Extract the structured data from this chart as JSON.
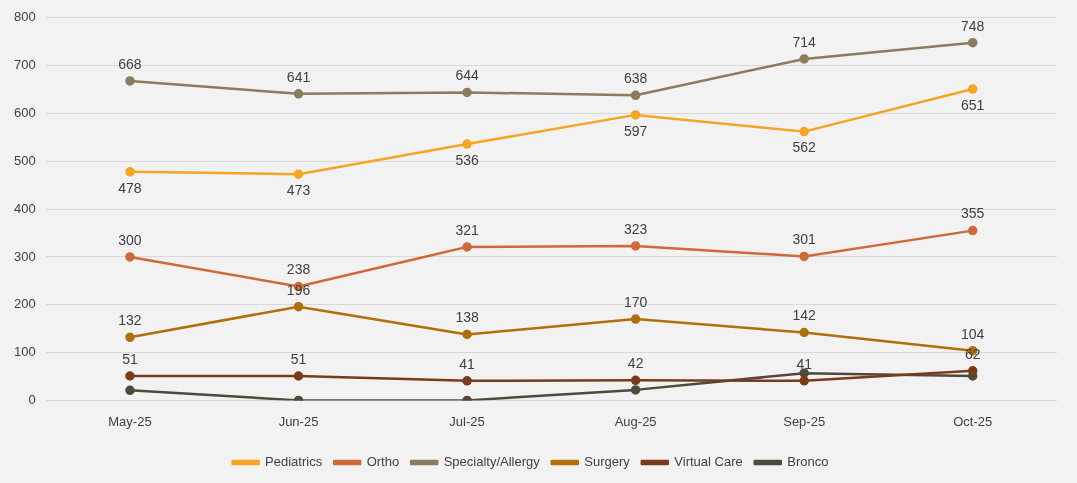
{
  "chart_data": {
    "type": "line",
    "categories": [
      "May-25",
      "Jun-25",
      "Jul-25",
      "Aug-25",
      "Sep-25",
      "Oct-25"
    ],
    "ylim": [
      0,
      800
    ],
    "yticks": [
      0,
      100,
      200,
      300,
      400,
      500,
      600,
      700,
      800
    ],
    "grid": "y",
    "legend": "bottom",
    "marker": "circle",
    "series": [
      {
        "name": "Pediatrics",
        "color": "#f5a523",
        "values": [
          478,
          473,
          536,
          597,
          562,
          651
        ],
        "value_labels": [
          "478",
          "473",
          "536",
          "597",
          "562",
          "651"
        ]
      },
      {
        "name": "Ortho",
        "color": "#d0693a",
        "values": [
          300,
          238,
          321,
          323,
          301,
          355
        ],
        "value_labels": [
          "300",
          "238",
          "321",
          "323",
          "301",
          "355"
        ]
      },
      {
        "name": "Specialty/Allergy",
        "color": "#8c7b5c",
        "values": [
          668,
          641,
          644,
          638,
          714,
          748
        ],
        "value_labels": [
          "668",
          "641",
          "644",
          "638",
          "714",
          "748"
        ]
      },
      {
        "name": "Surgery",
        "color": "#b06f0a",
        "values": [
          132,
          196,
          138,
          170,
          142,
          104
        ],
        "value_labels": [
          "132",
          "196",
          "138",
          "170",
          "142",
          "104"
        ]
      },
      {
        "name": "Virtual Care",
        "color": "#7b3a1a",
        "values": [
          51,
          51,
          41,
          42,
          41,
          62
        ],
        "value_labels": [
          "51",
          "51",
          "41",
          "42",
          "41",
          "62"
        ]
      },
      {
        "name": "Bronco",
        "color": "#4e4a3c",
        "values": [
          21,
          0,
          0,
          22,
          57,
          51
        ]
      }
    ]
  }
}
